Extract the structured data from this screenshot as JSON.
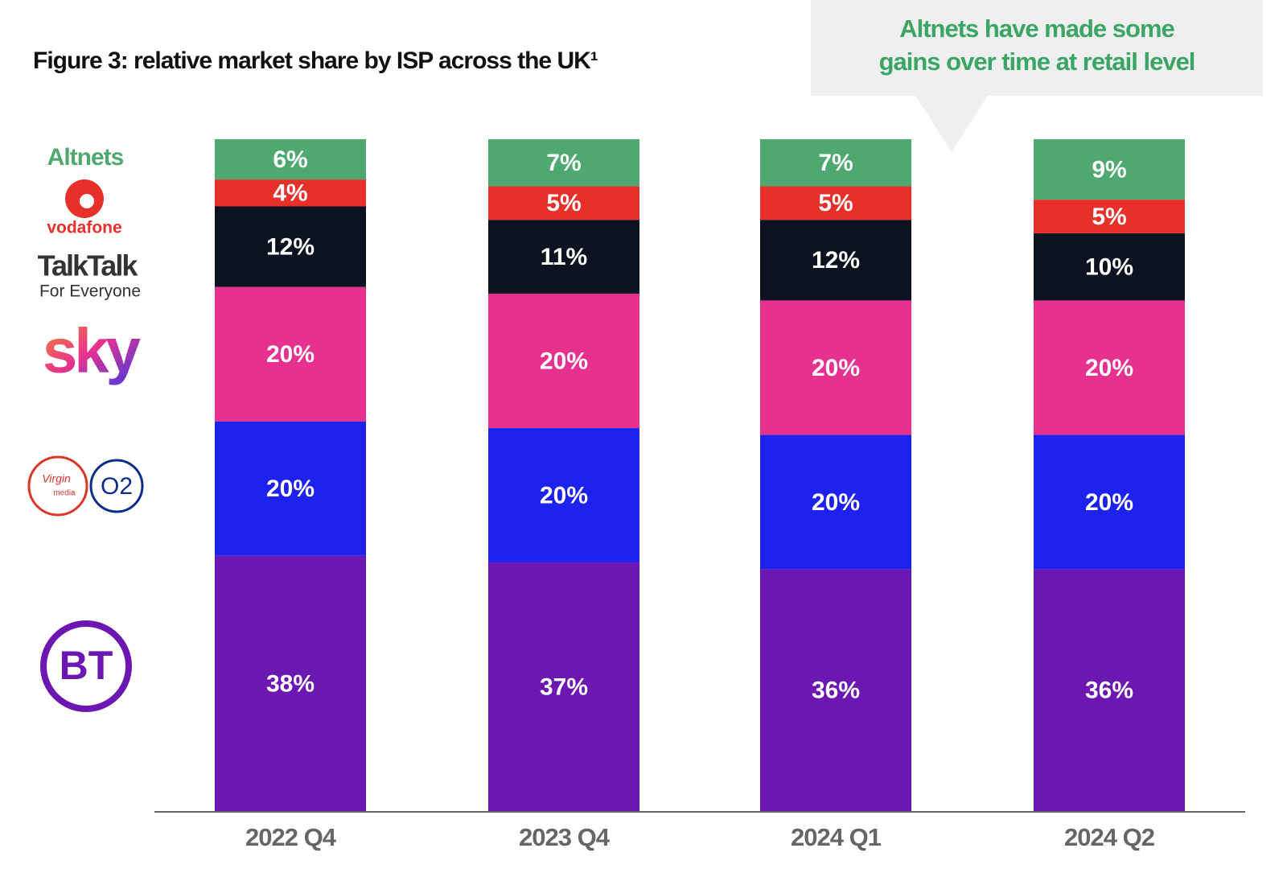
{
  "chart_data": {
    "type": "stacked-bar",
    "title": "Figure 3: relative market share by ISP across the UK¹",
    "callout": [
      "Altnets have made some",
      "gains over time at retail level"
    ],
    "categories": [
      "2022 Q4",
      "2023 Q4",
      "2024 Q1",
      "2024 Q2"
    ],
    "ylim": [
      0,
      100
    ],
    "series": [
      {
        "name": "BT",
        "color": "#6c17b1",
        "values": [
          38,
          37,
          36,
          36
        ],
        "value_labels": [
          "38%",
          "37%",
          "36%",
          "36%"
        ]
      },
      {
        "name": "O2",
        "logo_text": [
          "Virgin",
          "media"
        ],
        "color": "#1d22ef",
        "values": [
          20,
          20,
          20,
          20
        ],
        "value_labels": [
          "20%",
          "20%",
          "20%",
          "20%"
        ]
      },
      {
        "name": "sky",
        "color": "#e6318f",
        "values": [
          20,
          20,
          20,
          20
        ],
        "value_labels": [
          "20%",
          "20%",
          "20%",
          "20%"
        ]
      },
      {
        "name": "TalkTalk",
        "logo_text": [
          "For Everyone"
        ],
        "color": "#0d1220",
        "values": [
          12,
          11,
          12,
          10
        ],
        "value_labels": [
          "12%",
          "11%",
          "12%",
          "10%"
        ]
      },
      {
        "name": "vodafone",
        "color": "#e8302a",
        "values": [
          4,
          5,
          5,
          5
        ],
        "value_labels": [
          "4%",
          "5%",
          "5%",
          "5%"
        ]
      },
      {
        "name": "Altnets",
        "color": "#4ea86f",
        "values": [
          6,
          7,
          7,
          9
        ],
        "value_labels": [
          "6%",
          "7%",
          "7%",
          "9%"
        ]
      }
    ]
  }
}
